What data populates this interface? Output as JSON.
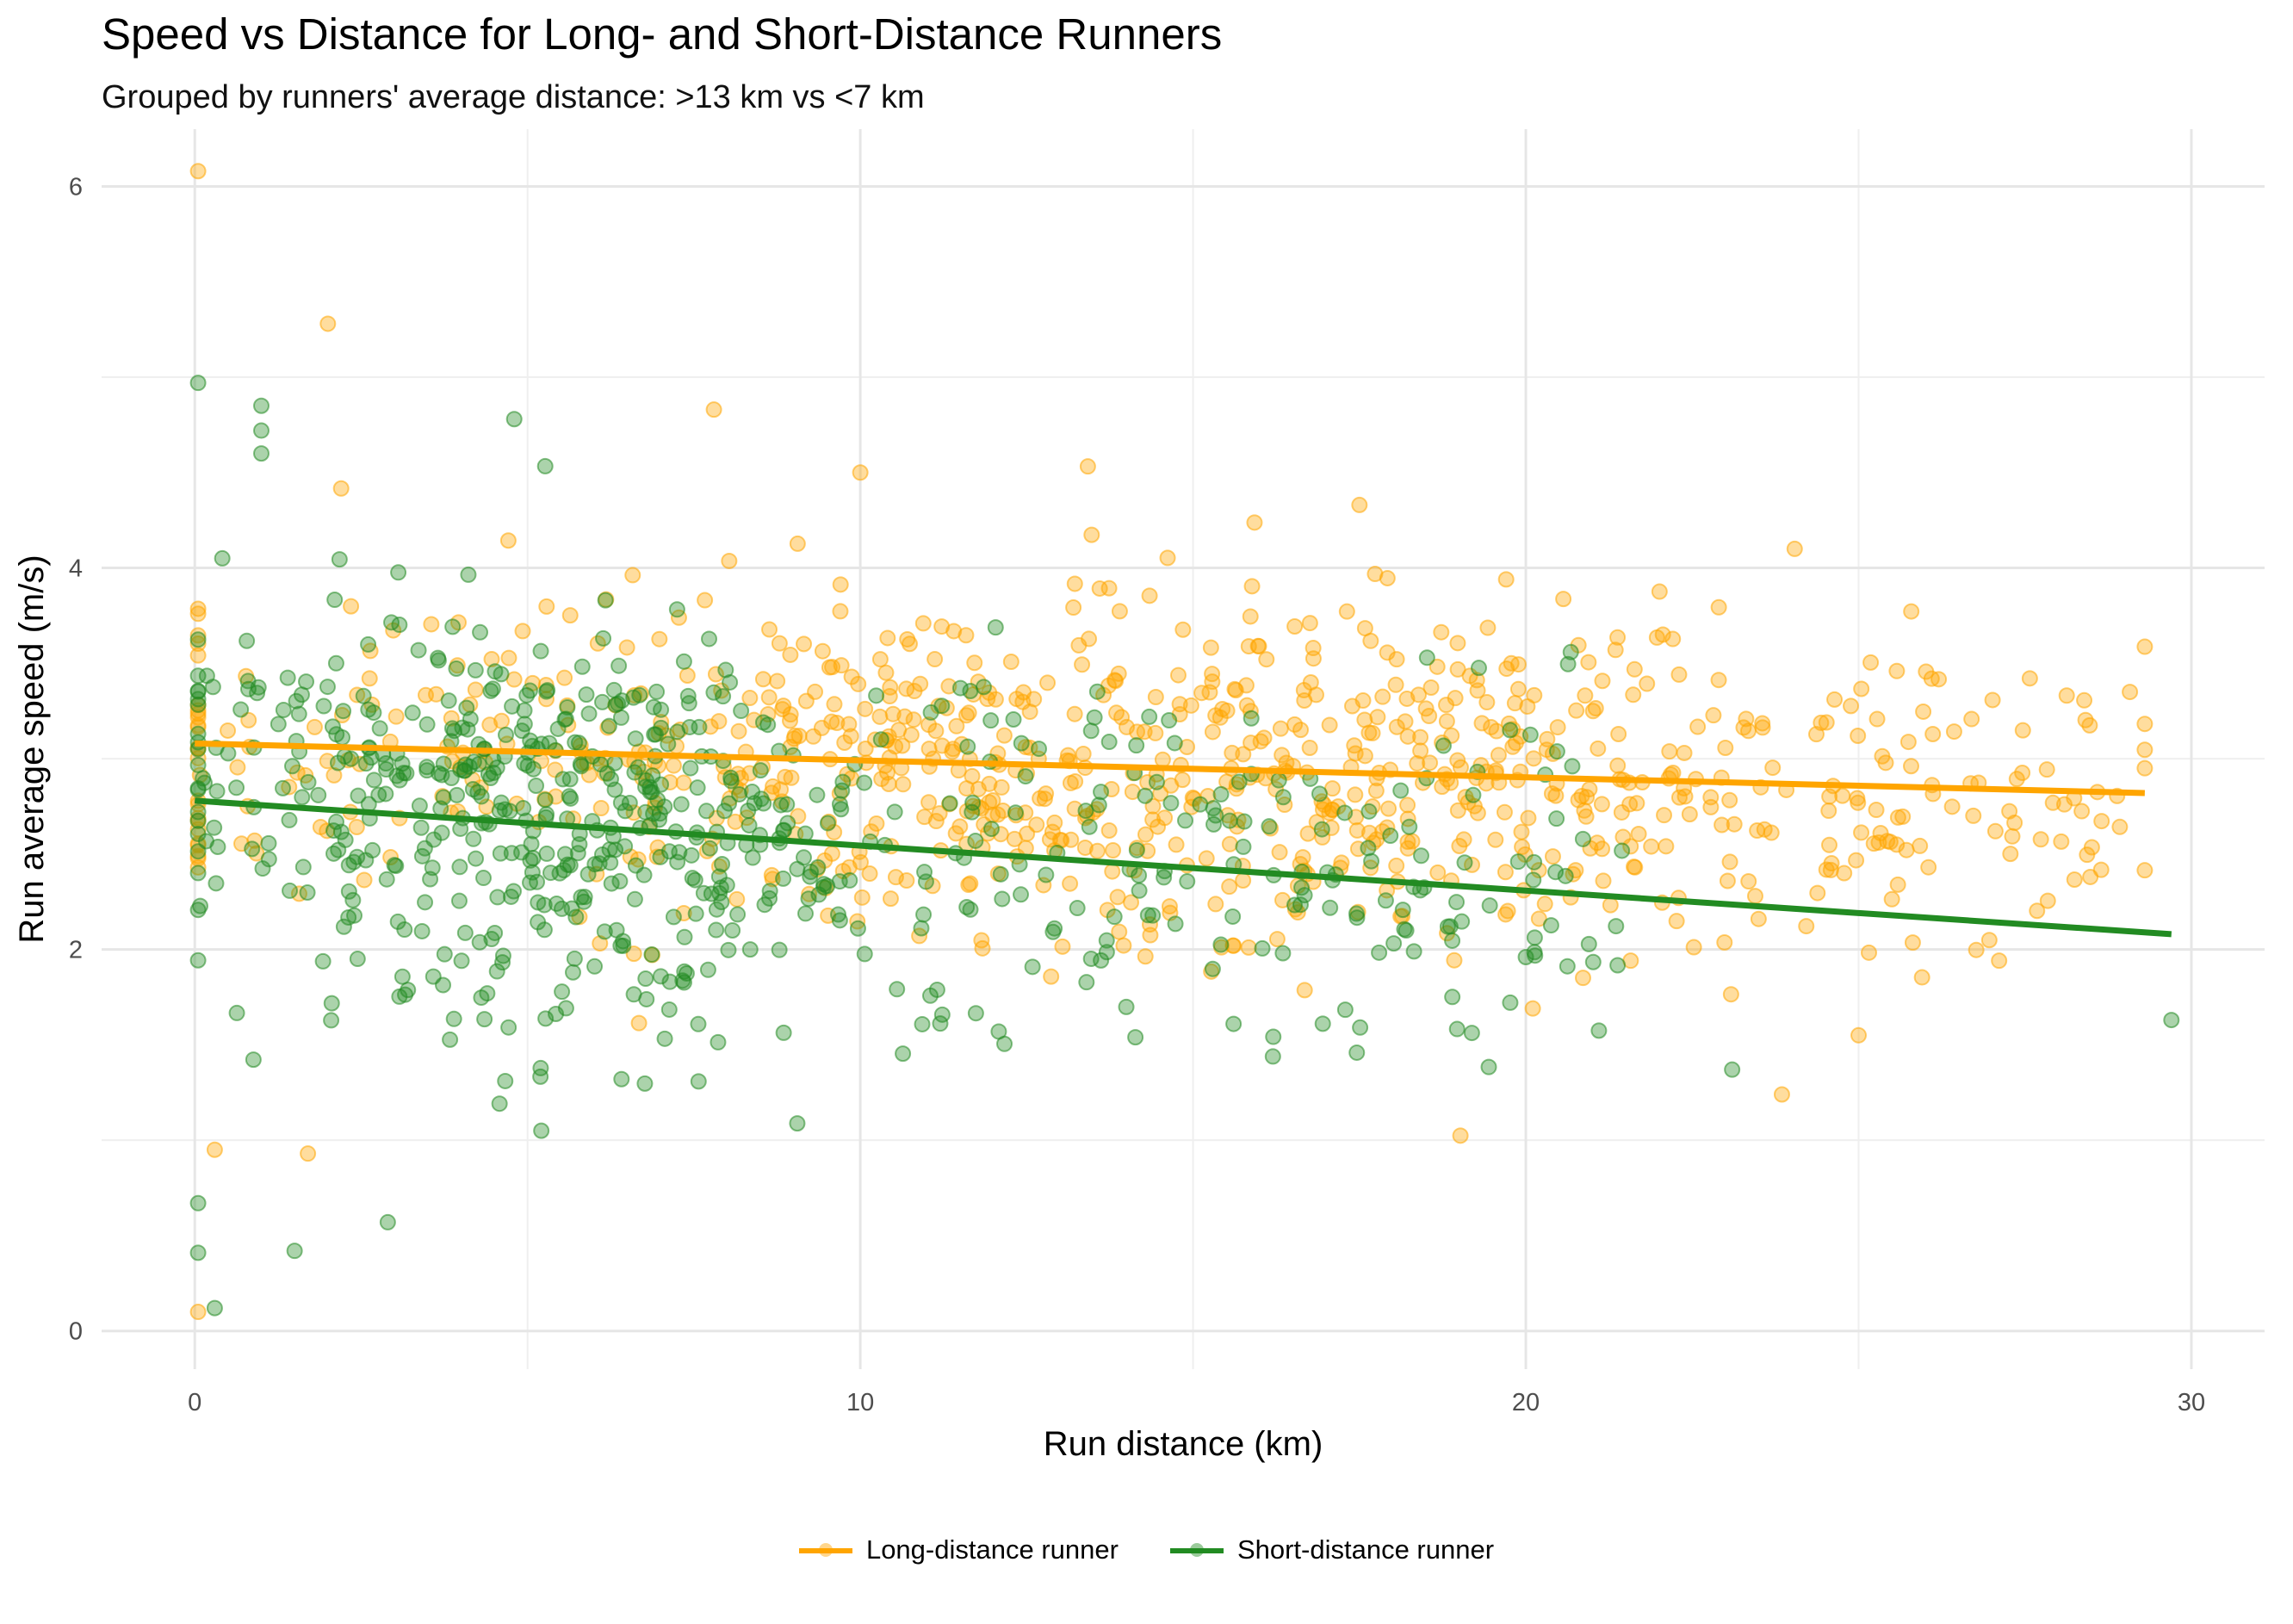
{
  "title": "Speed vs Distance for Long- and Short-Distance Runners",
  "subtitle": "Grouped by runners' average distance: >13 km vs <7 km",
  "chart_data": {
    "type": "scatter",
    "xlabel": "Run  distance (km)",
    "ylabel": "Run average speed (m/s)",
    "xlim": [
      -1.4,
      31.1
    ],
    "ylim": [
      -0.2,
      6.3
    ],
    "x_ticks": [
      0,
      10,
      20,
      30
    ],
    "y_ticks": [
      0,
      2,
      4,
      6
    ],
    "grid": true,
    "legend_position": "bottom",
    "series": [
      {
        "name": "Long-distance runner",
        "color": "#FFA500",
        "trend": {
          "x": [
            0,
            29.3
          ],
          "y": [
            3.08,
            2.82
          ]
        },
        "x_range": [
          0.05,
          29.3
        ],
        "y_range": [
          0.1,
          6.08
        ],
        "center": [
          12.5,
          3.0
        ],
        "spread": [
          6.5,
          0.45
        ],
        "n": 900,
        "notable_points": [
          [
            0.05,
            6.08
          ],
          [
            2,
            5.28
          ],
          [
            7.8,
            4.83
          ],
          [
            10,
            4.5
          ],
          [
            17.5,
            4.33
          ],
          [
            0.3,
            0.95
          ],
          [
            1.7,
            0.93
          ],
          [
            0.05,
            0.1
          ],
          [
            25,
            1.55
          ],
          [
            29.3,
            2.95
          ]
        ]
      },
      {
        "name": "Short-distance runner",
        "color": "#228B22",
        "trend": {
          "x": [
            0,
            29.7
          ],
          "y": [
            2.78,
            2.08
          ]
        },
        "x_range": [
          0.05,
          29.7
        ],
        "y_range": [
          0.12,
          4.97
        ],
        "center": [
          5.5,
          2.65
        ],
        "spread": [
          3.0,
          0.5
        ],
        "n": 700,
        "notable_points": [
          [
            0.05,
            4.97
          ],
          [
            1,
            4.85
          ],
          [
            1,
            4.72
          ],
          [
            1,
            4.6
          ],
          [
            4.8,
            4.78
          ],
          [
            0.05,
            0.67
          ],
          [
            0.05,
            0.41
          ],
          [
            0.3,
            0.12
          ],
          [
            2.9,
            0.57
          ],
          [
            1.5,
            0.42
          ],
          [
            20,
            1.96
          ],
          [
            29.7,
            1.63
          ],
          [
            23.1,
            1.37
          ]
        ]
      }
    ]
  }
}
